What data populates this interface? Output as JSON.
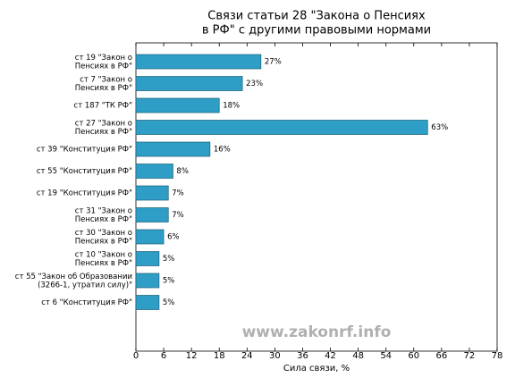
{
  "chart_data": {
    "type": "barh",
    "title": [
      "Связи статьи 28 \"Закона о Пенсиях",
      "в РФ\" с другими правовыми нормами"
    ],
    "categories": [
      [
        "ст 19 \"Закон о",
        "Пенсиях в РФ\""
      ],
      [
        "ст 7 \"Закон о",
        "Пенсиях в РФ\""
      ],
      [
        "ст 187 \"ТК РФ\""
      ],
      [
        "ст 27 \"Закон о",
        "Пенсиях в РФ\""
      ],
      [
        "ст 39 \"Конституция РФ\""
      ],
      [
        "ст 55 \"Конституция РФ\""
      ],
      [
        "ст 19 \"Конституция РФ\""
      ],
      [
        "ст 31 \"Закон о",
        "Пенсиях в РФ\""
      ],
      [
        "ст 30 \"Закон о",
        "Пенсиях в РФ\""
      ],
      [
        "ст 10 \"Закон о",
        "Пенсиях в РФ\""
      ],
      [
        "ст 55 \"Закон об Образовании",
        "(3266-1, утратил силу)\""
      ],
      [
        "ст 6 \"Конституция РФ\""
      ]
    ],
    "values": [
      27,
      23,
      18,
      63,
      16,
      8,
      7,
      7,
      6,
      5,
      5,
      5
    ],
    "value_labels": [
      "27%",
      "23%",
      "18%",
      "63%",
      "16%",
      "8%",
      "7%",
      "7%",
      "6%",
      "5%",
      "5%",
      "5%"
    ],
    "color": "#2e9ec6",
    "xlabel": "Сила связи, %",
    "xlim": [
      0,
      78
    ],
    "xticks": [
      0,
      6,
      12,
      18,
      24,
      30,
      36,
      42,
      48,
      54,
      60,
      66,
      72,
      78
    ],
    "watermark": "www.zakonrf.info"
  }
}
